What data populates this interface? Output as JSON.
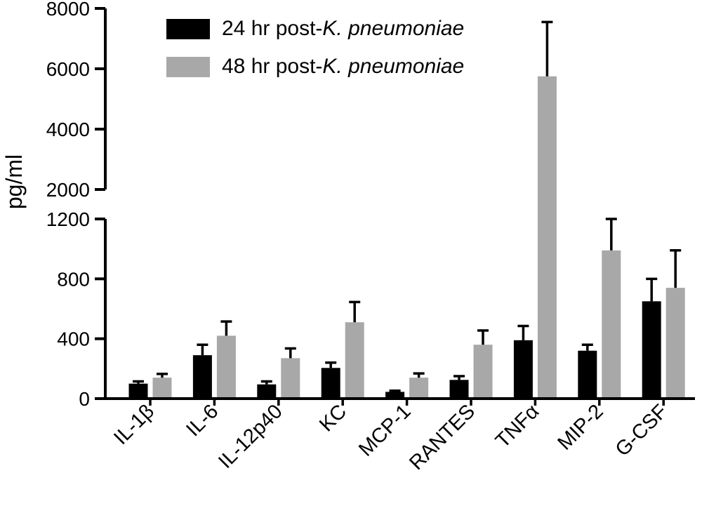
{
  "background_color": "#ffffff",
  "chart_data": {
    "type": "bar",
    "title": "",
    "xlabel": "",
    "ylabel": "pg/ml",
    "grid": false,
    "legend_position": "top-left-inside",
    "categories": [
      "IL-1β",
      "IL-6",
      "IL-12p40",
      "KC",
      "MCP-1",
      "RANTES",
      "TNFα",
      "MIP-2",
      "G-CSF"
    ],
    "series": [
      {
        "name": "24 hr post-K. pneumoniae",
        "label_prefix": "24 hr post-",
        "label_italic": "K. pneumoniae",
        "color": "#000000",
        "values": [
          100,
          290,
          95,
          205,
          45,
          125,
          390,
          320,
          650
        ],
        "errors_upper": [
          15,
          70,
          20,
          35,
          8,
          25,
          95,
          40,
          150
        ]
      },
      {
        "name": "48 hr post-K. pneumoniae",
        "label_prefix": "48 hr post-",
        "label_italic": "K. pneumoniae",
        "color": "#a8a8a8",
        "values": [
          140,
          420,
          270,
          510,
          140,
          360,
          5750,
          990,
          740
        ],
        "errors_upper": [
          25,
          95,
          65,
          135,
          28,
          95,
          1800,
          210,
          250
        ]
      }
    ],
    "error_bar_color": "#000000",
    "axis_break": {
      "lower_range": [
        0,
        1200
      ],
      "lower_ticks": [
        0,
        400,
        800,
        1200
      ],
      "upper_range": [
        2000,
        8000
      ],
      "upper_ticks": [
        2000,
        4000,
        6000,
        8000
      ]
    }
  }
}
